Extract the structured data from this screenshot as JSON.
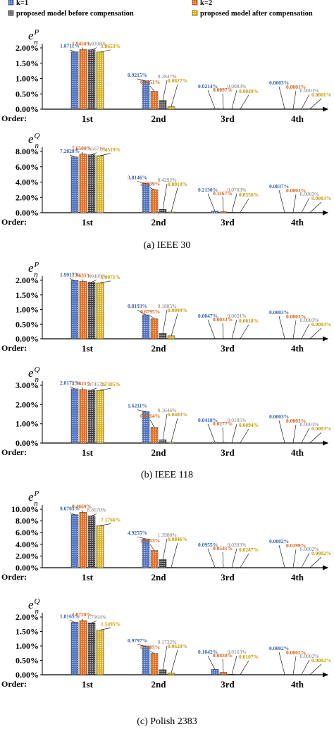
{
  "legend": {
    "items": [
      {
        "label": "k=1",
        "color": "#4a72c4",
        "pattern": "dots"
      },
      {
        "label": "k=2",
        "color": "#e26f28",
        "pattern": "dots"
      },
      {
        "label": "proposed model before compensation",
        "color": "#9a9a9a",
        "pattern": "grid"
      },
      {
        "label": "proposed model after compensation",
        "color": "#e5b40a",
        "pattern": "dots"
      }
    ]
  },
  "order_axis_label": "Order:",
  "categories": [
    "1st",
    "2nd",
    "3rd",
    "4th"
  ],
  "chart_data": [
    {
      "type": "bar",
      "ylabel_base": "e",
      "ylabel_sup": "P",
      "ylabel_sub": "n",
      "categories": [
        "1st",
        "2nd",
        "3rd",
        "4th"
      ],
      "yticks": [
        "0.00%",
        "0.50%",
        "1.00%",
        "1.50%",
        "2.00%"
      ],
      "ylim": [
        0,
        2.0
      ],
      "series": [
        {
          "values": [
            1.8711,
            0.9215,
            0.0214,
            0.0003
          ],
          "labels": [
            "1.8711%",
            "0.9215%",
            "0.0214%",
            "0.0003%"
          ]
        },
        {
          "values": [
            1.945,
            0.5851,
            0.0097,
            0.0001
          ],
          "labels": [
            "1.9450%",
            "0.5851%",
            "0.0097%",
            "0.0001%"
          ]
        },
        {
          "values": [
            1.9398,
            0.2847,
            0.0083,
            0.0001
          ],
          "labels": [
            "1.9398%",
            "0.2847%",
            "0.0083%",
            "0.0001%"
          ]
        },
        {
          "values": [
            1.8653,
            0.0827,
            0.0049,
            0.0001
          ],
          "labels": [
            "1.8653%",
            "0.0827%",
            "0.0049%",
            "0.0001%"
          ]
        }
      ]
    },
    {
      "type": "bar",
      "ylabel_base": "e",
      "ylabel_sup": "Q",
      "ylabel_sub": "n",
      "categories": [
        "1st",
        "2nd",
        "3rd",
        "4th"
      ],
      "yticks": [
        "0.00%",
        "2.00%",
        "4.00%",
        "6.00%",
        "8.00%"
      ],
      "ylim": [
        0,
        8.0
      ],
      "series": [
        {
          "values": [
            7.2828,
            3.8146,
            0.213,
            0.0037
          ],
          "labels": [
            "7.2828%",
            "3.8146%",
            "0.2130%",
            "0.0037%"
          ]
        },
        {
          "values": [
            7.65,
            2.9839,
            0.1167,
            0.0003
          ],
          "labels": [
            "7.6500%",
            "2.9839%",
            "0.1167%",
            "0.0003%"
          ]
        },
        {
          "values": [
            7.5671,
            0.4292,
            0.0703,
            0.0003
          ],
          "labels": [
            "7.5671%",
            "0.4292%",
            "0.0703%",
            "0.0003%"
          ]
        },
        {
          "values": [
            7.4519,
            0.091,
            0.0556,
            0.0003
          ],
          "labels": [
            "7.4519%",
            "0.0910%",
            "0.0556%",
            "0.0003%"
          ]
        }
      ]
    },
    {
      "type": "bar",
      "ylabel_base": "e",
      "ylabel_sup": "P",
      "ylabel_sub": "n",
      "categories": [
        "1st",
        "2nd",
        "3rd",
        "4th"
      ],
      "yticks": [
        "0.00%",
        "0.50%",
        "1.00%",
        "1.50%",
        "2.00%"
      ],
      "ylim": [
        0,
        2.0
      ],
      "series": [
        {
          "values": [
            1.9917,
            0.8193,
            0.0047,
            0.0003
          ],
          "labels": [
            "1.9917%",
            "0.8193%",
            "0.0047%",
            "0.0003%"
          ]
        },
        {
          "values": [
            1.9635,
            0.6795,
            0.0033,
            0.0003
          ],
          "labels": [
            "1.9635%",
            "0.6795%",
            "0.0033%",
            "0.0003%"
          ]
        },
        {
          "values": [
            1.94,
            0.1885,
            0.0021,
            0.0003
          ],
          "labels": [
            "1.9400%",
            "0.1885%",
            "0.0021%",
            "0.0003%"
          ]
        },
        {
          "values": [
            1.9071,
            0.0999,
            0.0018,
            0.0003
          ],
          "labels": [
            "1.9071%",
            "0.0999%",
            "0.0018%",
            "0.0003%"
          ]
        }
      ]
    },
    {
      "type": "bar",
      "ylabel_base": "e",
      "ylabel_sup": "Q",
      "ylabel_sub": "n",
      "categories": [
        "1st",
        "2nd",
        "3rd",
        "4th"
      ],
      "yticks": [
        "0.00%",
        "1.00%",
        "2.00%",
        "3.00%"
      ],
      "ylim": [
        0,
        3.0
      ],
      "series": [
        {
          "values": [
            2.8171,
            1.6211,
            0.0418,
            0.0003
          ],
          "labels": [
            "2.8171%",
            "1.6211%",
            "0.0418%",
            "0.0003%"
          ]
        },
        {
          "values": [
            2.7825,
            0.8214,
            0.0277,
            0.0003
          ],
          "labels": [
            "2.7825%",
            "0.8214%",
            "0.0277%",
            "0.0003%"
          ]
        },
        {
          "values": [
            2.7457,
            0.1646,
            0.0105,
            0.0003
          ],
          "labels": [
            "2.7457%",
            "0.1646%",
            "0.0105%",
            "0.0003%"
          ]
        },
        {
          "values": [
            2.7385,
            0.0483,
            0.0094,
            0.0003
          ],
          "labels": [
            "2.7385%",
            "0.0483%",
            "0.0094%",
            "0.0003%"
          ]
        }
      ]
    },
    {
      "type": "bar",
      "ylabel_base": "e",
      "ylabel_sup": "P",
      "ylabel_sub": "n",
      "categories": [
        "1st",
        "2nd",
        "3rd",
        "4th"
      ],
      "yticks": [
        "0.00%",
        "2.00%",
        "4.00%",
        "6.00%",
        "8.00%",
        "10.00%"
      ],
      "ylim": [
        0,
        10.0
      ],
      "series": [
        {
          "values": [
            9.0705,
            4.9255,
            0.0955,
            0.0002
          ],
          "labels": [
            "9.0705%",
            "4.9255%",
            "0.0955%",
            "0.0002%"
          ]
        },
        {
          "values": [
            9.4669,
            2.9353,
            0.0541,
            0.0199
          ],
          "labels": [
            "9.4669%",
            "2.9353%",
            "0.0541%",
            "0.0199%"
          ]
        },
        {
          "values": [
            8.867,
            1.3988,
            0.0283,
            0.0002
          ],
          "labels": [
            "8.8670%",
            "1.3988%",
            "0.0283%",
            "0.0002%"
          ]
        },
        {
          "values": [
            7.1766,
            0.0846,
            0.0287,
            0.0002
          ],
          "labels": [
            "7.1766%",
            "0.0846%",
            "0.0287%",
            "0.0002%"
          ]
        }
      ]
    },
    {
      "type": "bar",
      "ylabel_base": "e",
      "ylabel_sup": "Q",
      "ylabel_sub": "n",
      "categories": [
        "1st",
        "2nd",
        "3rd",
        "4th"
      ],
      "yticks": [
        "0.00%",
        "0.50%",
        "1.00%",
        "1.50%",
        "2.00%"
      ],
      "ylim": [
        0,
        2.0
      ],
      "series": [
        {
          "values": [
            1.8165,
            0.9797,
            0.1842,
            0.0002
          ],
          "labels": [
            "1.8165%",
            "0.9797%",
            "0.1842%",
            "0.0002%"
          ]
        },
        {
          "values": [
            1.872,
            0.7385,
            0.083,
            0.0002
          ],
          "labels": [
            "1.8720%",
            "0.7385%",
            "0.0830%",
            "0.0002%"
          ]
        },
        {
          "values": [
            1.7964,
            0.1732,
            0.0163,
            0.0002
          ],
          "labels": [
            "1.7964%",
            "0.1732%",
            "0.0163%",
            "0.0002%"
          ]
        },
        {
          "values": [
            1.5495,
            0.062,
            0.0107,
            0.0002
          ],
          "labels": [
            "1.5495%",
            "0.0620%",
            "0.0107%",
            "0.0002%"
          ]
        }
      ]
    }
  ],
  "captions": [
    "(a)  IEEE 30",
    "(b)  IEEE 118",
    "(c)  Polish 2383"
  ]
}
